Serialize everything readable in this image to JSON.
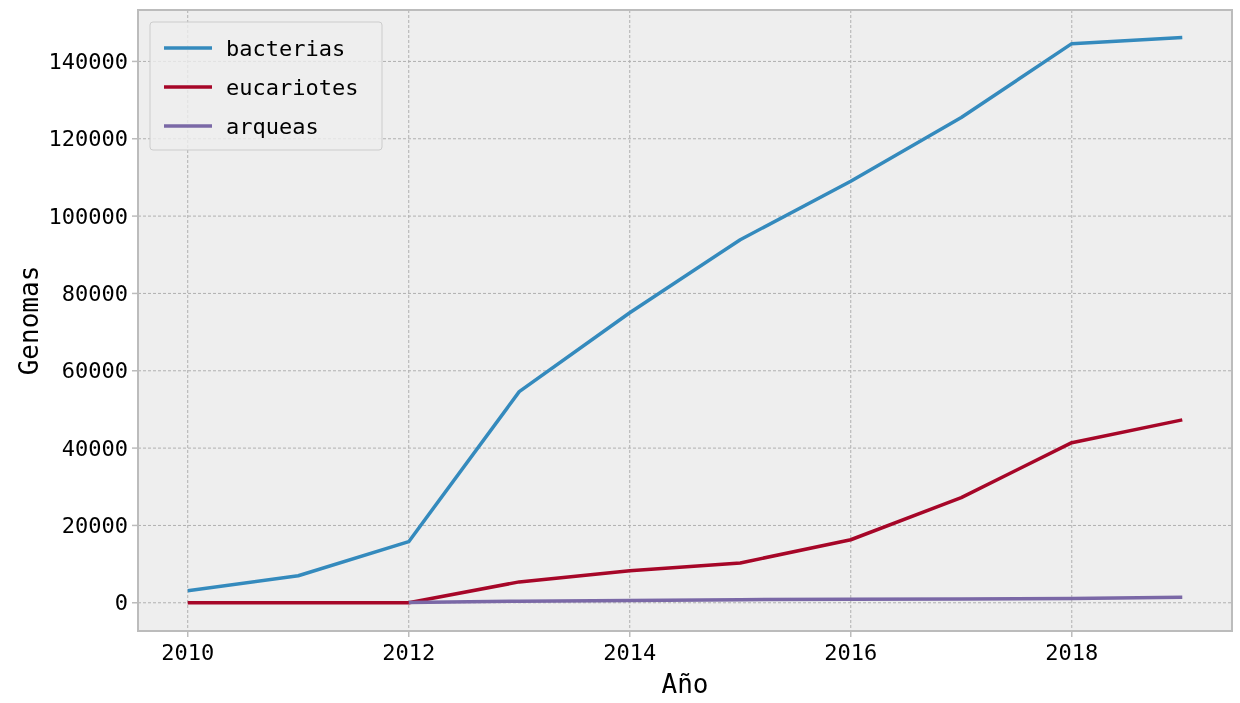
{
  "chart_data": {
    "type": "line",
    "xlabel": "Año",
    "ylabel": "Genomas",
    "x": [
      2010,
      2011,
      2012,
      2013,
      2014,
      2015,
      2016,
      2017,
      2018,
      2019
    ],
    "series": [
      {
        "name": "bacterias",
        "color": "#348abd",
        "values": [
          3100,
          7000,
          15800,
          54600,
          75000,
          93900,
          109000,
          125500,
          144600,
          146200
        ]
      },
      {
        "name": "eucariotes",
        "color": "#a60628",
        "values": [
          0,
          0,
          0,
          5400,
          8300,
          10300,
          16300,
          27200,
          41400,
          47300
        ]
      },
      {
        "name": "arqueas",
        "color": "#7a68a6",
        "values": [
          null,
          null,
          100,
          400,
          600,
          800,
          900,
          1000,
          1100,
          1400
        ]
      }
    ],
    "xlim": [
      2009.55,
      2019.45
    ],
    "xticks": [
      2010,
      2012,
      2014,
      2016,
      2018
    ],
    "ylim": [
      -7300,
      153300
    ],
    "yticks": [
      0,
      20000,
      40000,
      60000,
      80000,
      100000,
      120000,
      140000
    ],
    "grid": true,
    "legend": "top left",
    "marker": "none",
    "line_style": "solid"
  }
}
